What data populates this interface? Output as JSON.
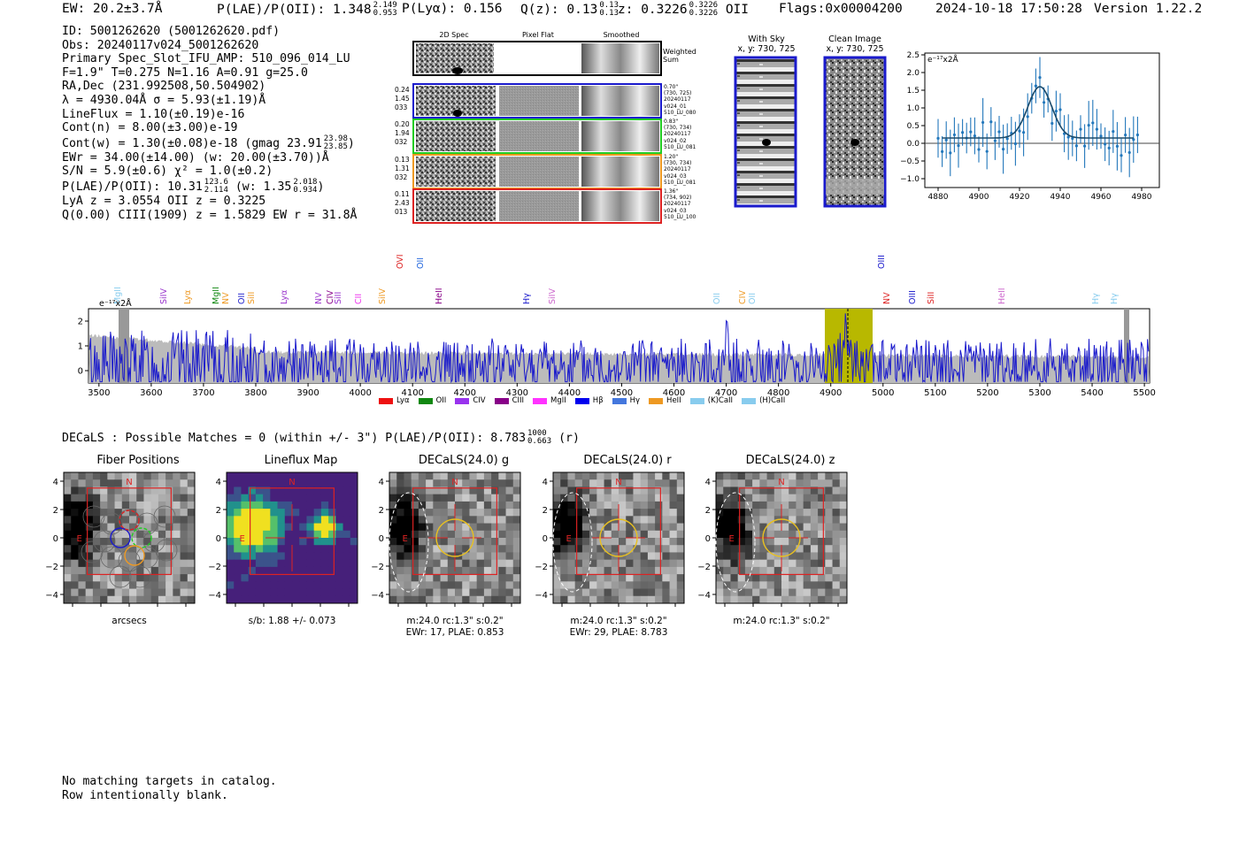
{
  "header": {
    "ew": "EW: 20.2±3.7Å",
    "plae_label": "P(LAE)/P(OII): 1.348",
    "plae_hi": "2.149",
    "plae_lo": "0.953",
    "plya": "P(Lyα): 0.156",
    "qz_label": "Q(z): 0.13",
    "qz_hi": "0.13",
    "qz_lo": "0.13",
    "z_label": "z: 0.3226",
    "z_hi": "0.3226",
    "z_lo": "0.3226",
    "z_line": "OII",
    "flags": "Flags:0x00004200",
    "datetime": "2024-10-18 17:50:28",
    "version": "Version 1.22.2"
  },
  "info": {
    "id": "ID: 5001262620 (5001262620.pdf)",
    "obs": "Obs: 20240117v024_5001262620",
    "primary": "Primary Spec_Slot_IFU_AMP: 510_096_014_LU",
    "fparams": "F=1.9\"  T=0.275  N=1.16  A=0.91  g=25.0",
    "radec": "RA,Dec (231.992508,50.504902)",
    "lambda": "λ = 4930.04Å  σ = 5.93(±1.19)Å",
    "lineflux": "LineFlux = 1.10(±0.19)e-16",
    "contn": "Cont(n) = 8.00(±3.00)e-19",
    "contw": "Cont(w) = 1.30(±0.08)e-18 (gmag 23.91",
    "contw_hi": "23.98",
    "contw_lo": "23.85",
    "contw_end": ")",
    "ewr": "EWr = 34.00(±14.00) (w: 20.00(±3.70))Å",
    "sn": "S/N = 5.9(±0.6)  χ² = 1.0(±0.2)",
    "plae": "P(LAE)/P(OII): 10.31",
    "plae_hi": "123.6",
    "plae_lo": "2.114",
    "plae_w": "(w: 1.35",
    "plae_w_hi": "2.018",
    "plae_w_lo": "0.934",
    "plae_w_end": ")",
    "lya": "LyA z = 3.0554  OII z = 0.3225",
    "q": "Q(0.00) CIII(1909) z = 1.5829  EW r = 31.8Å"
  },
  "twod": {
    "col_2d": "2D Spec",
    "col_flat": "Pixel Flat",
    "col_smooth": "Smoothed",
    "weighted": "Weighted\nSum",
    "rows": [
      {
        "left": [
          "0.24",
          "1.45",
          "033"
        ],
        "right": [
          "0.70\"",
          "(730, 725)",
          "20240117",
          "v024_01",
          "510_LU_080"
        ],
        "color": "#1a1acc"
      },
      {
        "left": [
          "0.20",
          "1.94",
          "032"
        ],
        "right": [
          "0.83\"",
          "(730, 734)",
          "20240117",
          "v024_02",
          "510_LU_081"
        ],
        "color": "#22cc22"
      },
      {
        "left": [
          "0.13",
          "1.31",
          "032"
        ],
        "right": [
          "1.20\"",
          "(730, 734)",
          "20240117",
          "v024_03",
          "510_LU_081"
        ],
        "color": "#ee9922"
      },
      {
        "left": [
          "0.11",
          "2.43",
          "013"
        ],
        "right": [
          "1.36\"",
          "(734, 902)",
          "20240117",
          "v024_03",
          "510_LU_100"
        ],
        "color": "#dd2222"
      }
    ]
  },
  "sky": {
    "with_sky_title": "With Sky",
    "with_sky_xy": "x, y: 730, 725",
    "clean_title": "Clean Image",
    "clean_xy": "x, y: 730, 725"
  },
  "line_fit": {
    "unit": "e⁻¹⁷x2Å",
    "yticks": [
      "2.5",
      "2.0",
      "1.5",
      "1.0",
      "0.5",
      "0.0",
      "−0.5",
      "−1.0"
    ],
    "xticks": [
      "4880",
      "4900",
      "4920",
      "4940",
      "4960",
      "4980"
    ]
  },
  "spectrum": {
    "unit": "e⁻¹⁷x2Å",
    "yticks": [
      "2",
      "1",
      "0"
    ],
    "xticks": [
      "3500",
      "3600",
      "3700",
      "3800",
      "3900",
      "4000",
      "4100",
      "4200",
      "4300",
      "4400",
      "4500",
      "4600",
      "4700",
      "4800",
      "4900",
      "5000",
      "5100",
      "5200",
      "5300",
      "5400",
      "5500"
    ],
    "lines": [
      {
        "label": "MgII",
        "color": "#88ccee"
      },
      {
        "label": "SiIV",
        "color": "#9933cc"
      },
      {
        "label": "Lyα",
        "color": "#ee9922"
      },
      {
        "label": "MgII",
        "color": "#118811"
      },
      {
        "label": "NV",
        "color": "#ee9922"
      },
      {
        "label": "OII",
        "color": "#2222cc"
      },
      {
        "label": "SiII",
        "color": "#ee9922"
      },
      {
        "label": "Lyα",
        "color": "#9933cc"
      },
      {
        "label": "NV",
        "color": "#9933cc"
      },
      {
        "label": "CIV",
        "color": "#880088"
      },
      {
        "label": "SiII",
        "color": "#9933cc"
      },
      {
        "label": "CII",
        "color": "#ee33ee"
      },
      {
        "label": "SiIV",
        "color": "#ee9922"
      },
      {
        "label": "OVI",
        "color": "#dd2222"
      },
      {
        "label": "OII",
        "color": "#2266dd"
      },
      {
        "label": "HeII",
        "color": "#880088"
      },
      {
        "label": "Hγ",
        "color": "#1a1acc"
      },
      {
        "label": "SiIV",
        "color": "#cc66cc"
      },
      {
        "label": "OII",
        "color": "#88ccee"
      },
      {
        "label": "CIV",
        "color": "#ee9922"
      },
      {
        "label": "OII",
        "color": "#88ccee"
      },
      {
        "label": "OIII",
        "color": "#1a1acc"
      },
      {
        "label": "NV",
        "color": "#dd2222"
      },
      {
        "label": "OIII",
        "color": "#1a1acc"
      },
      {
        "label": "SiII",
        "color": "#dd2222"
      },
      {
        "label": "HeII",
        "color": "#cc66cc"
      },
      {
        "label": "Hγ",
        "color": "#88ccee"
      },
      {
        "label": "Hγ",
        "color": "#88ccee"
      }
    ],
    "legend": [
      {
        "label": "Lyα",
        "color": "#ee1111"
      },
      {
        "label": "OII",
        "color": "#118811"
      },
      {
        "label": "CIV",
        "color": "#9933ee"
      },
      {
        "label": "CIII",
        "color": "#880088"
      },
      {
        "label": "MgII",
        "color": "#ff33ff"
      },
      {
        "label": "Hβ",
        "color": "#0000ee"
      },
      {
        "label": "Hγ",
        "color": "#4477dd"
      },
      {
        "label": "HeII",
        "color": "#ee9922"
      },
      {
        "label": "(K)CaII",
        "color": "#88ccee"
      },
      {
        "label": "(H)CaII",
        "color": "#88ccee"
      }
    ]
  },
  "decals": {
    "summary": "DECaLS : Possible Matches = 0 (within +/- 3\")  P(LAE)/P(OII): 8.783",
    "summary_hi": "1000",
    "summary_lo": "0.663",
    "summary_end": "(r)",
    "panels": [
      {
        "title": "Fiber Positions",
        "n": "N",
        "e": "E",
        "caption1": "arcsecs",
        "caption2": ""
      },
      {
        "title": "Lineflux Map",
        "n": "N",
        "e": "E",
        "caption1": "s/b: 1.88 +/- 0.073",
        "caption2": ""
      },
      {
        "title": "DECaLS(24.0) g",
        "n": "N",
        "e": "E",
        "caption1": "m:24.0 rc:1.3\"  s:0.2\"",
        "caption2": "EWr: 17, PLAE: 0.853"
      },
      {
        "title": "DECaLS(24.0) r",
        "n": "N",
        "e": "E",
        "caption1": "m:24.0 rc:1.3\"  s:0.2\"",
        "caption2": "EWr: 29, PLAE: 8.783"
      },
      {
        "title": "DECaLS(24.0) z",
        "n": "N",
        "e": "E",
        "caption1": "m:24.0 rc:1.3\"  s:0.2\"",
        "caption2": ""
      }
    ],
    "ticks": [
      "4",
      "2",
      "0",
      "−2",
      "−4"
    ],
    "xticks": [
      "−4",
      "−2",
      "0",
      "2",
      "4"
    ]
  },
  "catalog": {
    "line1": "No matching targets in catalog.",
    "line2": "Row intentionally blank."
  }
}
